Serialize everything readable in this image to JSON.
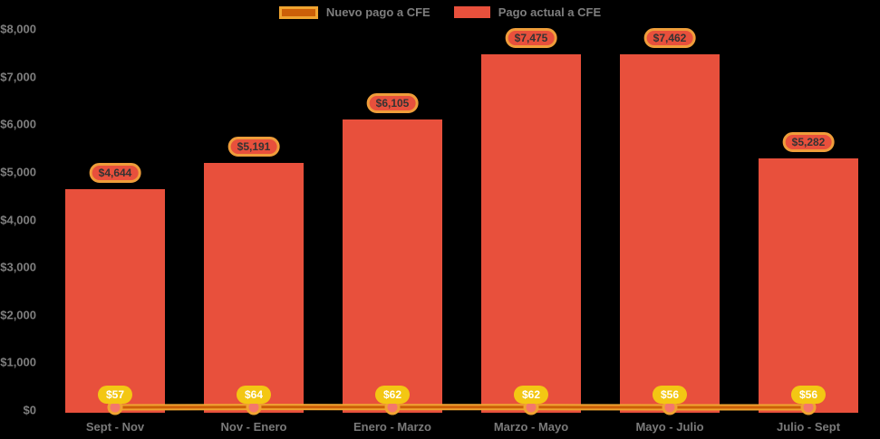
{
  "chart_data": {
    "type": "bar",
    "title": "",
    "categories": [
      "Sept - Nov",
      "Nov - Enero",
      "Enero - Marzo",
      "Marzo - Mayo",
      "Mayo - Julio",
      "Julio - Sept"
    ],
    "series": [
      {
        "name": "Pago actual a CFE",
        "type": "bar",
        "color": "#e8503c",
        "values": [
          4644,
          5191,
          6105,
          7475,
          7462,
          5282
        ],
        "labels": [
          "$4,644",
          "$5,191",
          "$6,105",
          "$7,475",
          "$7,462",
          "$5,282"
        ]
      },
      {
        "name": "Nuevo pago a CFE",
        "type": "line",
        "color": "#f0a430",
        "line_core_color": "#cc5f08",
        "marker_fill": "#f4776c",
        "values": [
          57,
          64,
          62,
          62,
          56,
          56
        ],
        "labels": [
          "$57",
          "$64",
          "$62",
          "$62",
          "$56",
          "$56"
        ]
      }
    ],
    "xlabel": "",
    "ylabel": "",
    "ylim": [
      0,
      8000
    ],
    "yticks": [
      {
        "value": 0,
        "label": "$0"
      },
      {
        "value": 1000,
        "label": "$1,000"
      },
      {
        "value": 2000,
        "label": "$2,000"
      },
      {
        "value": 3000,
        "label": "$3,000"
      },
      {
        "value": 4000,
        "label": "$4,000"
      },
      {
        "value": 5000,
        "label": "$5,000"
      },
      {
        "value": 6000,
        "label": "$6,000"
      },
      {
        "value": 7000,
        "label": "$7,000"
      },
      {
        "value": 8000,
        "label": "$8,000"
      }
    ],
    "grid": false,
    "legend_position": "top-center",
    "background_color": "#000000",
    "text_color": "#7e7e7e",
    "value_pill": {
      "border_color": "#ef9d3a",
      "fill_color": "#e8503c",
      "text_color": "#333333"
    },
    "baseline_pill": {
      "fill_color": "#f3c713",
      "text_color": "#ffffff"
    }
  }
}
